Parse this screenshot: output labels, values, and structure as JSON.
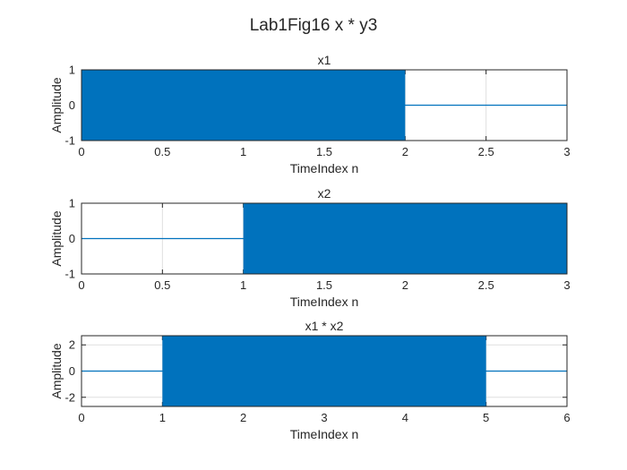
{
  "figure": {
    "title": "Lab1Fig16 x * y3",
    "colors": {
      "signal": "#0072BD",
      "axis": "#262626",
      "grid": "#dfdfdf",
      "background": "#ffffff"
    }
  },
  "chart_data": [
    {
      "type": "line",
      "title": "x1",
      "xlabel": "TimeIndex n",
      "ylabel": "Amplitude",
      "xlim": [
        0,
        3
      ],
      "ylim": [
        -1,
        1
      ],
      "xticks": [
        "0",
        "0.5",
        "1",
        "1.5",
        "2",
        "2.5",
        "3"
      ],
      "yticks": [
        "-1",
        "0",
        "1"
      ],
      "grid": true,
      "series": [
        {
          "description": "dense oscillation between -1 and 1 on [0, 2], zero on [2, 3]",
          "segments": [
            {
              "x": [
                0,
                2
              ],
              "min": -1,
              "max": 1
            }
          ],
          "baseline": 0
        }
      ]
    },
    {
      "type": "line",
      "title": "x2",
      "xlabel": "TimeIndex n",
      "ylabel": "Amplitude",
      "xlim": [
        0,
        3
      ],
      "ylim": [
        -1,
        1
      ],
      "xticks": [
        "0",
        "0.5",
        "1",
        "1.5",
        "2",
        "2.5",
        "3"
      ],
      "yticks": [
        "-1",
        "0",
        "1"
      ],
      "grid": true,
      "series": [
        {
          "description": "zero on [0, 1], dense oscillation between -1 and 1 on [1, 3]",
          "segments": [
            {
              "x": [
                1,
                3
              ],
              "min": -1,
              "max": 1
            }
          ],
          "baseline": 0
        }
      ]
    },
    {
      "type": "line",
      "title": "x1 * x2",
      "xlabel": "TimeIndex n",
      "ylabel": "Amplitude",
      "xlim": [
        0,
        6
      ],
      "ylim": [
        -2.7,
        2.7
      ],
      "xticks": [
        "0",
        "1",
        "2",
        "3",
        "4",
        "5",
        "6"
      ],
      "yticks": [
        "-2",
        "0",
        "2"
      ],
      "grid": true,
      "series": [
        {
          "description": "zero on [0, 1], dense oscillation filling full range on [1, 5], zero on [5, 6]",
          "segments": [
            {
              "x": [
                1,
                5
              ],
              "min": -2.7,
              "max": 2.7
            }
          ],
          "baseline": 0
        }
      ]
    }
  ]
}
